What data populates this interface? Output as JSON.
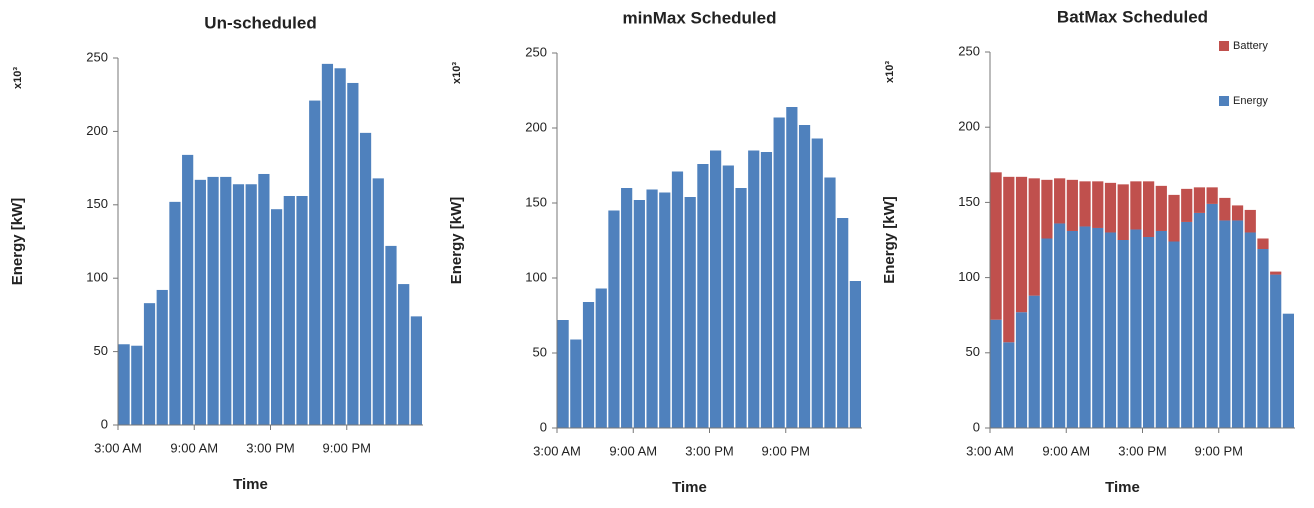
{
  "chart_data": [
    {
      "type": "bar",
      "title": "Un-scheduled",
      "y_label": "Energy [kW]",
      "y_multiplier": "x10³",
      "x_label": "Time",
      "categories": [
        "3:00 AM",
        null,
        null,
        null,
        null,
        null,
        "9:00 AM",
        null,
        null,
        null,
        null,
        null,
        "3:00 PM",
        null,
        null,
        null,
        null,
        null,
        "9:00 PM",
        null,
        null,
        null,
        null,
        null
      ],
      "values": [
        55,
        54,
        83,
        92,
        152,
        184,
        167,
        169,
        169,
        164,
        164,
        171,
        147,
        156,
        156,
        221,
        246,
        243,
        233,
        199,
        168,
        122,
        96,
        74
      ],
      "color": "#4f81bd",
      "ylim": [
        0,
        250
      ],
      "yticks": [
        0,
        50,
        100,
        150,
        200,
        250
      ]
    },
    {
      "type": "bar",
      "title": "minMax Scheduled",
      "y_label": "Energy [kW]",
      "y_multiplier": "x10³",
      "x_label": "Time",
      "categories": [
        "3:00 AM",
        null,
        null,
        null,
        null,
        null,
        "9:00 AM",
        null,
        null,
        null,
        null,
        null,
        "3:00 PM",
        null,
        null,
        null,
        null,
        null,
        "9:00 PM",
        null,
        null,
        null,
        null,
        null
      ],
      "values": [
        72,
        59,
        84,
        93,
        145,
        160,
        152,
        159,
        157,
        171,
        154,
        176,
        185,
        175,
        160,
        185,
        184,
        207,
        214,
        202,
        193,
        167,
        140,
        98
      ],
      "color": "#4f81bd",
      "ylim": [
        0,
        250
      ],
      "yticks": [
        0,
        50,
        100,
        150,
        200,
        250
      ]
    },
    {
      "type": "stacked_bar",
      "title": "BatMax Scheduled",
      "y_label": "Energy [kW]",
      "y_multiplier": "x10³",
      "x_label": "Time",
      "categories": [
        "3:00 AM",
        null,
        null,
        null,
        null,
        null,
        "9:00 AM",
        null,
        null,
        null,
        null,
        null,
        "3:00 PM",
        null,
        null,
        null,
        null,
        null,
        "9:00 PM",
        null,
        null,
        null,
        null,
        null
      ],
      "series": [
        {
          "name": "Energy",
          "color": "#4f81bd",
          "values": [
            72,
            57,
            77,
            88,
            126,
            136,
            131,
            134,
            133,
            130,
            125,
            132,
            127,
            131,
            124,
            137,
            143,
            149,
            138,
            138,
            130,
            119,
            102,
            76
          ]
        },
        {
          "name": "Battery",
          "color": "#c0504d",
          "values": [
            98,
            110,
            90,
            78,
            39,
            30,
            34,
            30,
            31,
            33,
            37,
            32,
            37,
            30,
            31,
            22,
            17,
            11,
            15,
            10,
            15,
            7,
            2,
            0
          ]
        }
      ],
      "ylim": [
        0,
        250
      ],
      "yticks": [
        0,
        50,
        100,
        150,
        200,
        250
      ],
      "legend": "upper right"
    }
  ]
}
